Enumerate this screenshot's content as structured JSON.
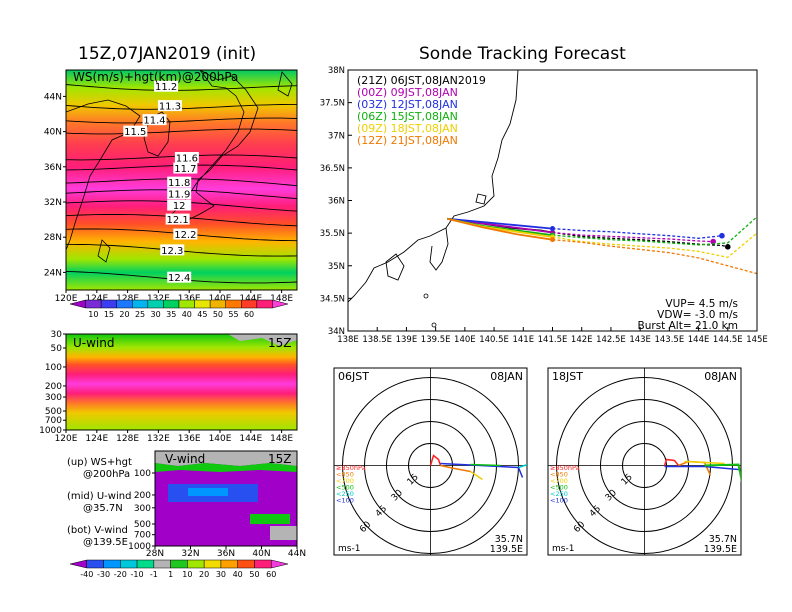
{
  "chart_data": [
    {
      "type": "heatmap",
      "panel": "upper-left",
      "title": "15Z,07JAN2019 (init)",
      "subtitle": "WS(m/s)+hgt(km)@200hPa",
      "x_ticks": [
        "120E",
        "124E",
        "128E",
        "132E",
        "136E",
        "140E",
        "144E",
        "148E"
      ],
      "y_ticks": [
        "44N",
        "40N",
        "36N",
        "32N",
        "28N",
        "24N"
      ],
      "xlim": [
        120,
        150
      ],
      "ylim": [
        22,
        47
      ],
      "contour_labels": [
        {
          "label": "11.2",
          "lat": 45.1,
          "lon": 133.0
        },
        {
          "label": "11.3",
          "lat": 42.9,
          "lon": 133.5
        },
        {
          "label": "11.4",
          "lat": 41.3,
          "lon": 131.5
        },
        {
          "label": "11.5",
          "lat": 40.0,
          "lon": 129.0
        },
        {
          "label": "11.6",
          "lat": 37.0,
          "lon": 135.7
        },
        {
          "label": "11.7",
          "lat": 35.8,
          "lon": 135.5
        },
        {
          "label": "11.8",
          "lat": 34.2,
          "lon": 134.7
        },
        {
          "label": "11.9",
          "lat": 32.9,
          "lon": 134.7
        },
        {
          "label": "12",
          "lat": 31.6,
          "lon": 134.7
        },
        {
          "label": "12.1",
          "lat": 30.0,
          "lon": 134.5
        },
        {
          "label": "12.2",
          "lat": 28.3,
          "lon": 135.5
        },
        {
          "label": "12.3",
          "lat": 26.5,
          "lon": 133.8
        },
        {
          "label": "12.4",
          "lat": 23.4,
          "lon": 134.7
        }
      ],
      "colorbar_ticks": [
        "10",
        "15",
        "20",
        "25",
        "30",
        "35",
        "40",
        "45",
        "50",
        "55",
        "60"
      ],
      "colors": [
        "#a000c8",
        "#7a2bd8",
        "#3c3cf0",
        "#1e78ff",
        "#00b4f0",
        "#00d0b0",
        "#00d060",
        "#a0e600",
        "#e6e600",
        "#f0b400",
        "#ff7800",
        "#ff3c28",
        "#ff1e78",
        "#ff3cdc"
      ]
    },
    {
      "type": "heatmap",
      "panel": "middle-left",
      "label": "U-wind",
      "time": "15Z",
      "x_ticks": [
        "120E",
        "124E",
        "128E",
        "132E",
        "136E",
        "140E",
        "144E",
        "148E"
      ],
      "y_ticks": [
        "30",
        "50",
        "100",
        "200",
        "300",
        "500",
        "700",
        "1000"
      ]
    },
    {
      "type": "heatmap",
      "panel": "lower-left",
      "label": "V-wind",
      "time": "15Z",
      "x_ticks": [
        "28N",
        "32N",
        "36N",
        "40N",
        "44N"
      ],
      "y_ticks": [
        "100",
        "200",
        "300",
        "500",
        "700",
        "1000"
      ],
      "colorbar_ticks": [
        "-40",
        "-30",
        "-20",
        "-10",
        "-1",
        "1",
        "10",
        "20",
        "30",
        "40",
        "50",
        "60"
      ],
      "colors": [
        "#a000c8",
        "#2850f0",
        "#0096ff",
        "#00c8dc",
        "#00dc8c",
        "#b4b4b4",
        "#1ec81e",
        "#a0e600",
        "#f0dc00",
        "#ffa000",
        "#ff5014",
        "#ff1e78",
        "#f03cdc"
      ]
    },
    {
      "type": "line",
      "panel": "upper-right",
      "title": "Sonde Tracking Forecast",
      "x_ticks": [
        "138E",
        "138.5E",
        "139E",
        "139.5E",
        "140E",
        "140.5E",
        "141E",
        "141.5E",
        "142E",
        "142.5E",
        "143E",
        "143.5E",
        "144E",
        "144.5E",
        "145E"
      ],
      "y_ticks": [
        "38N",
        "37.5N",
        "37N",
        "36.5N",
        "36N",
        "35.5N",
        "35N",
        "34.5N",
        "34N"
      ],
      "xlim": [
        138,
        145
      ],
      "ylim": [
        34,
        38
      ],
      "legend_position": "top-left",
      "series": [
        {
          "name": "(21Z) 06JST,08JAN2019",
          "color": "#000000",
          "lon": [
            139.7,
            140.2,
            140.8,
            141.3,
            141.5,
            142.0,
            142.5,
            143.0,
            143.5,
            144.0,
            144.4,
            144.5
          ],
          "lat": [
            35.72,
            35.66,
            35.58,
            35.54,
            35.51,
            35.45,
            35.42,
            35.4,
            35.37,
            35.33,
            35.31,
            35.29
          ]
        },
        {
          "name": "(00Z) 09JST,08JAN",
          "color": "#b000b0",
          "lon": [
            139.7,
            140.3,
            140.9,
            141.5,
            142.0,
            142.5,
            143.0,
            143.5,
            144.0,
            144.25
          ],
          "lat": [
            35.72,
            35.65,
            35.58,
            35.51,
            35.47,
            35.45,
            35.43,
            35.41,
            35.38,
            35.37
          ]
        },
        {
          "name": "(03Z) 12JST,08JAN",
          "color": "#2030e0",
          "lon": [
            139.7,
            140.3,
            140.9,
            141.5,
            142.0,
            142.5,
            143.0,
            143.5,
            144.0,
            144.4
          ],
          "lat": [
            35.72,
            35.67,
            35.62,
            35.57,
            35.54,
            35.52,
            35.49,
            35.46,
            35.42,
            35.46
          ]
        },
        {
          "name": "(06Z) 15JST,08JAN",
          "color": "#10b010",
          "lon": [
            139.7,
            140.3,
            140.9,
            141.5,
            142.0,
            142.5,
            143.0,
            143.5,
            144.0,
            144.5,
            145.0
          ],
          "lat": [
            35.72,
            35.61,
            35.54,
            35.47,
            35.43,
            35.4,
            35.38,
            35.35,
            35.32,
            35.35,
            35.75
          ]
        },
        {
          "name": "(09Z) 18JST,08JAN",
          "color": "#f0d000",
          "lon": [
            139.7,
            140.3,
            140.9,
            141.5,
            142.0,
            142.5,
            143.0,
            143.5,
            144.0,
            144.5,
            145.0
          ],
          "lat": [
            35.72,
            35.6,
            35.52,
            35.44,
            35.37,
            35.33,
            35.3,
            35.27,
            35.22,
            35.13,
            35.5
          ]
        },
        {
          "name": "(12Z) 21JST,08JAN",
          "color": "#f07800",
          "lon": [
            139.7,
            140.3,
            140.9,
            141.5,
            142.0,
            142.5,
            143.0,
            143.5,
            144.0,
            144.5,
            145.0
          ],
          "lat": [
            35.72,
            35.59,
            35.48,
            35.4,
            35.36,
            35.3,
            35.25,
            35.2,
            35.12,
            35.0,
            34.88
          ]
        }
      ],
      "annotations": [
        "VUP= 4.5 m/s",
        "VDW= -3.0 m/s",
        "Burst Alt= 21.0 km"
      ]
    },
    {
      "type": "polar",
      "panel": "lower-middle",
      "time_left": "06JST",
      "date_right": "08JAN",
      "rings": [
        "15",
        "30",
        "45",
        "60"
      ],
      "legend": [
        {
          "name": "≥850hPa",
          "color": "#ff2020"
        },
        {
          "name": "<850",
          "color": "#f07800"
        },
        {
          "name": "<700",
          "color": "#f0d000"
        },
        {
          "name": "<500",
          "color": "#10c010"
        },
        {
          "name": "<250",
          "color": "#00c8c8"
        },
        {
          "name": "<100",
          "color": "#2030e0"
        }
      ],
      "unit": "ms-1",
      "location": [
        "35.7N",
        "139.5E"
      ]
    },
    {
      "type": "polar",
      "panel": "lower-right",
      "time_left": "18JST",
      "date_right": "08JAN",
      "rings": [
        "15",
        "30",
        "45",
        "60"
      ],
      "unit": "ms-1",
      "location": [
        "35.7N",
        "139.5E"
      ]
    }
  ],
  "notes": {
    "up": "(up) WS+hgt",
    "up2": "@200hPa",
    "mid": "(mid) U-wind",
    "mid2": "@35.7N",
    "bot": "(bot) V-wind",
    "bot2": "@139.5E"
  }
}
